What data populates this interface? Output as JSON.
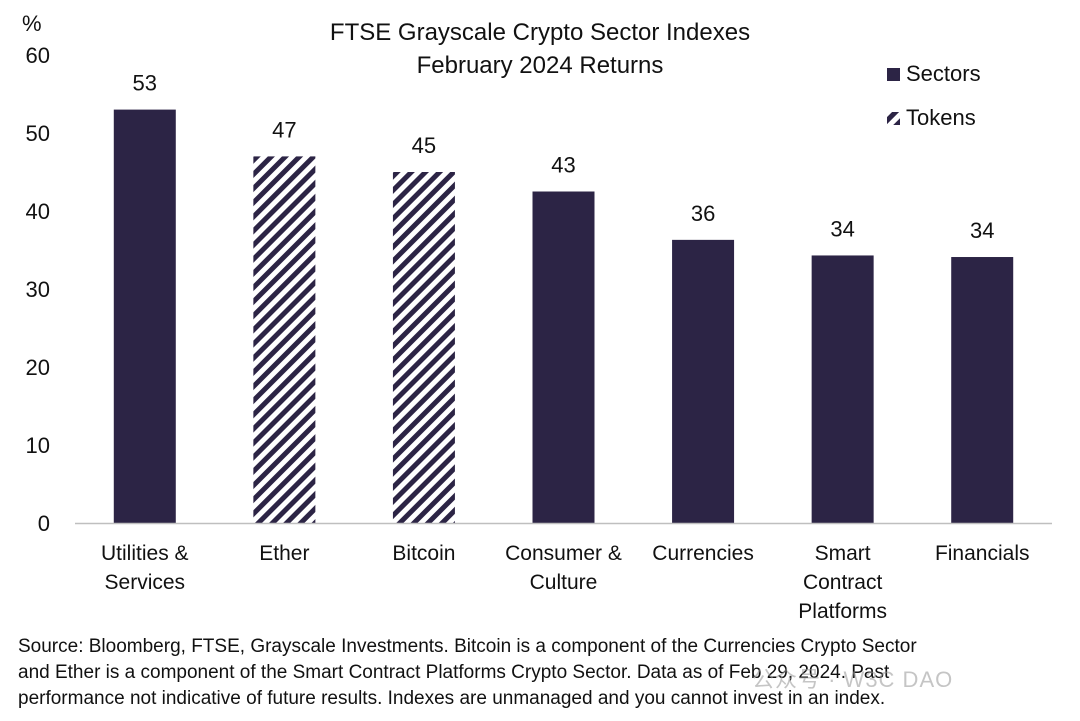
{
  "chart_data": {
    "type": "bar",
    "title": [
      "FTSE Grayscale Crypto Sector Indexes",
      "February 2024 Returns"
    ],
    "ylabel": "%",
    "ylim": [
      0,
      60
    ],
    "yticks": [
      0,
      10,
      20,
      30,
      40,
      50,
      60
    ],
    "categories": [
      [
        "Utilities &",
        "Services"
      ],
      [
        "Ether"
      ],
      [
        "Bitcoin"
      ],
      [
        "Consumer &",
        "Culture"
      ],
      [
        "Currencies"
      ],
      [
        "Smart",
        "Contract",
        "Platforms"
      ],
      [
        "Financials"
      ]
    ],
    "values": [
      53,
      47,
      45,
      42.5,
      36.3,
      34.3,
      34.1
    ],
    "value_labels": [
      "53",
      "47",
      "45",
      "43",
      "36",
      "34",
      "34"
    ],
    "groups": [
      "Sectors",
      "Tokens",
      "Tokens",
      "Sectors",
      "Sectors",
      "Sectors",
      "Sectors"
    ],
    "legend": {
      "position": "top-right",
      "entries": [
        {
          "name": "Sectors",
          "style": "solid"
        },
        {
          "name": "Tokens",
          "style": "hatched"
        }
      ]
    },
    "colors": {
      "bar": "#2c2445",
      "hatch_bg": "#ffffff"
    },
    "grid": false
  },
  "footer": {
    "source_lines": [
      "Source: Bloomberg, FTSE, Grayscale Investments. Bitcoin is a component of the Currencies Crypto Sector",
      "and Ether is a component of the Smart Contract Platforms Crypto Sector. Data as of Feb 29, 2024. Past",
      "performance not indicative of future results. Indexes are unmanaged and you cannot invest in an index."
    ],
    "watermark": "公众号 · W3C DAO"
  }
}
